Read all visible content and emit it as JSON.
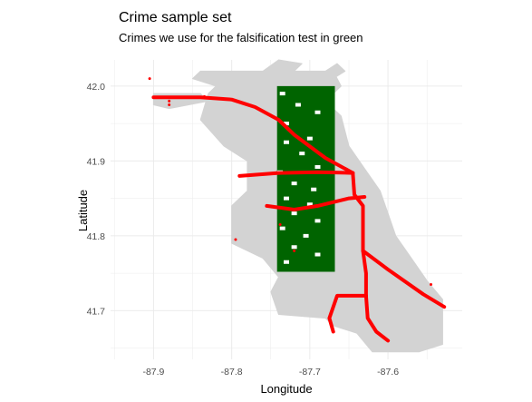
{
  "chart_data": {
    "type": "scatter",
    "title": "Crime sample set",
    "subtitle": "Crimes we use for the falsification test in green",
    "xlabel": "Longitude",
    "ylabel": "Latitude",
    "xlim": [
      -87.955,
      -87.505
    ],
    "ylim": [
      41.635,
      42.035
    ],
    "x_ticks": [
      -87.9,
      -87.8,
      -87.7,
      -87.6
    ],
    "x_tick_labels": [
      "-87.9",
      "-87.8",
      "-87.7",
      "-87.6"
    ],
    "y_ticks": [
      41.7,
      41.8,
      41.9,
      42.0
    ],
    "y_tick_labels": [
      "41.7",
      "41.8",
      "41.9",
      "42.0"
    ],
    "grid": true,
    "legend": "none",
    "colors": {
      "background_crimes": "#d3d3d3",
      "test_crimes": "#006400",
      "transit_lines": "#ff0000",
      "grid": "#ebebeb"
    },
    "series": [
      {
        "role": "background",
        "color": "#d3d3d3",
        "regions": [
          [
            [
              -87.84,
              42.02
            ],
            [
              -87.72,
              42.02
            ],
            [
              -87.67,
              42.02
            ],
            [
              -87.66,
              42.0
            ],
            [
              -87.68,
              41.98
            ],
            [
              -87.66,
              41.96
            ],
            [
              -87.65,
              41.92
            ],
            [
              -87.63,
              41.89
            ],
            [
              -87.61,
              41.86
            ],
            [
              -87.6,
              41.83
            ],
            [
              -87.59,
              41.8
            ],
            [
              -87.57,
              41.77
            ],
            [
              -87.55,
              41.74
            ],
            [
              -87.53,
              41.715
            ],
            [
              -87.53,
              41.655
            ],
            [
              -87.56,
              41.645
            ],
            [
              -87.62,
              41.645
            ],
            [
              -87.64,
              41.67
            ],
            [
              -87.67,
              41.68
            ],
            [
              -87.68,
              41.69
            ],
            [
              -87.74,
              41.695
            ],
            [
              -87.75,
              41.725
            ],
            [
              -87.74,
              41.745
            ],
            [
              -87.76,
              41.77
            ],
            [
              -87.8,
              41.79
            ],
            [
              -87.8,
              41.84
            ],
            [
              -87.78,
              41.86
            ],
            [
              -87.78,
              41.9
            ],
            [
              -87.81,
              41.92
            ],
            [
              -87.84,
              41.955
            ],
            [
              -87.83,
              41.99
            ],
            [
              -87.82,
              42.0
            ],
            [
              -87.85,
              42.01
            ]
          ],
          [
            [
              -87.9,
              41.99
            ],
            [
              -87.84,
              41.99
            ],
            [
              -87.83,
              41.98
            ],
            [
              -87.88,
              41.97
            ],
            [
              -87.9,
              41.975
            ]
          ],
          [
            [
              -87.76,
              42.02
            ],
            [
              -87.74,
              42.035
            ],
            [
              -87.71,
              42.03
            ],
            [
              -87.72,
              42.02
            ]
          ],
          [
            [
              -87.68,
              42.02
            ],
            [
              -87.665,
              42.03
            ],
            [
              -87.655,
              42.02
            ],
            [
              -87.67,
              42.01
            ]
          ]
        ]
      },
      {
        "role": "falsification-test",
        "color": "#006400",
        "x_range": [
          -87.742,
          -87.668
        ],
        "y_range": [
          41.752,
          42.0
        ],
        "regions": [
          [
            [
              -87.742,
              42.0
            ],
            [
              -87.668,
              42.0
            ],
            [
              -87.668,
              41.752
            ],
            [
              -87.742,
              41.752
            ]
          ]
        ],
        "holes": [
          [
            -87.735,
            41.99
          ],
          [
            -87.715,
            41.975
          ],
          [
            -87.69,
            41.965
          ],
          [
            -87.73,
            41.95
          ],
          [
            -87.7,
            41.93
          ],
          [
            -87.73,
            41.925
          ],
          [
            -87.71,
            41.91
          ],
          [
            -87.69,
            41.892
          ],
          [
            -87.738,
            41.885
          ],
          [
            -87.72,
            41.87
          ],
          [
            -87.695,
            41.862
          ],
          [
            -87.73,
            41.85
          ],
          [
            -87.7,
            41.842
          ],
          [
            -87.72,
            41.83
          ],
          [
            -87.69,
            41.82
          ],
          [
            -87.735,
            41.81
          ],
          [
            -87.705,
            41.8
          ],
          [
            -87.72,
            41.785
          ],
          [
            -87.69,
            41.775
          ],
          [
            -87.73,
            41.765
          ]
        ]
      },
      {
        "role": "transit-lines",
        "color": "#ff0000",
        "lines": [
          [
            [
              -87.9,
              41.985
            ],
            [
              -87.84,
              41.985
            ],
            [
              -87.8,
              41.982
            ],
            [
              -87.77,
              41.972
            ],
            [
              -87.74,
              41.955
            ],
            [
              -87.72,
              41.935
            ],
            [
              -87.68,
              41.904
            ],
            [
              -87.645,
              41.884
            ]
          ],
          [
            [
              -87.79,
              41.88
            ],
            [
              -87.74,
              41.884
            ],
            [
              -87.69,
              41.885
            ],
            [
              -87.645,
              41.884
            ]
          ],
          [
            [
              -87.755,
              41.84
            ],
            [
              -87.72,
              41.835
            ],
            [
              -87.69,
              41.84
            ],
            [
              -87.65,
              41.85
            ],
            [
              -87.63,
              41.852
            ]
          ],
          [
            [
              -87.645,
              41.884
            ],
            [
              -87.643,
              41.855
            ],
            [
              -87.632,
              41.84
            ],
            [
              -87.632,
              41.78
            ],
            [
              -87.628,
              41.75
            ],
            [
              -87.628,
              41.72
            ]
          ],
          [
            [
              -87.632,
              41.78
            ],
            [
              -87.6,
              41.755
            ],
            [
              -87.555,
              41.722
            ],
            [
              -87.528,
              41.705
            ]
          ],
          [
            [
              -87.67,
              41.672
            ],
            [
              -87.675,
              41.69
            ],
            [
              -87.665,
              41.72
            ],
            [
              -87.628,
              41.72
            ]
          ],
          [
            [
              -87.628,
              41.72
            ],
            [
              -87.626,
              41.69
            ],
            [
              -87.615,
              41.672
            ],
            [
              -87.6,
              41.66
            ]
          ]
        ],
        "scattered_points": [
          [
            -87.905,
            42.01
          ],
          [
            -87.88,
            41.98
          ],
          [
            -87.855,
            41.985
          ],
          [
            -87.835,
            41.986
          ],
          [
            -87.88,
            41.975
          ],
          [
            -87.795,
            41.795
          ],
          [
            -87.738,
            41.815
          ],
          [
            -87.545,
            41.735
          ],
          [
            -87.72,
            41.78
          ]
        ]
      }
    ]
  }
}
